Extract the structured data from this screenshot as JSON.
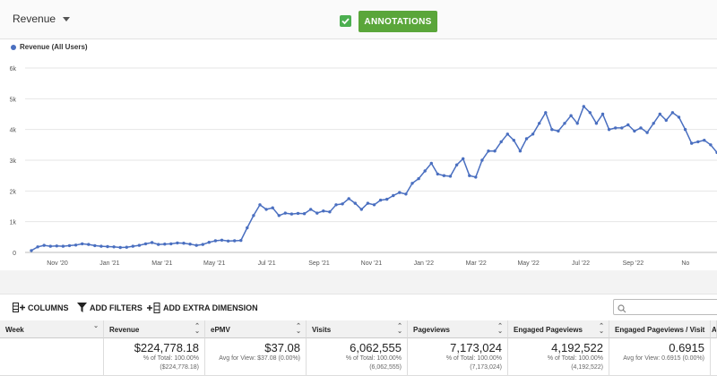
{
  "header": {
    "metric_label": "Revenue",
    "annotations_label": "ANNOTATIONS",
    "annotations_checked": true,
    "accent_color": "#5aa63a"
  },
  "legend": {
    "label": "Revenue (All Users)",
    "color": "#4a6fc0"
  },
  "chart_data": {
    "type": "line",
    "series": [
      {
        "name": "Revenue (All Users)",
        "values": [
          60,
          180,
          230,
          200,
          210,
          200,
          220,
          240,
          280,
          260,
          220,
          200,
          190,
          180,
          160,
          170,
          200,
          230,
          280,
          320,
          260,
          270,
          280,
          310,
          300,
          270,
          230,
          260,
          330,
          380,
          400,
          370,
          380,
          390,
          800,
          1200,
          1550,
          1400,
          1450,
          1200,
          1280,
          1250,
          1270,
          1260,
          1400,
          1280,
          1350,
          1320,
          1550,
          1580,
          1750,
          1600,
          1400,
          1600,
          1550,
          1700,
          1730,
          1850,
          1950,
          1900,
          2250,
          2400,
          2650,
          2900,
          2550,
          2500,
          2480,
          2850,
          3050,
          2500,
          2450,
          3000,
          3300,
          3300,
          3600,
          3850,
          3650,
          3300,
          3700,
          3850,
          4200,
          4550,
          4000,
          3950,
          4200,
          4450,
          4200,
          4750,
          4550,
          4200,
          4500,
          4000,
          4050,
          4050,
          4150,
          3950,
          4050,
          3900,
          4200,
          4500,
          4300,
          4550,
          4400,
          4000,
          3550,
          3600,
          3650,
          3500,
          3250
        ]
      }
    ],
    "ylim": [
      0,
      6000
    ],
    "y_ticks": [
      "0",
      "1k",
      "2k",
      "3k",
      "4k",
      "5k",
      "6k"
    ],
    "x_ticks": [
      "Nov '20",
      "Jan '21",
      "Mar '21",
      "May '21",
      "Jul '21",
      "Sep '21",
      "Nov '21",
      "Jan '22",
      "Mar '22",
      "May '22",
      "Jul '22",
      "Sep '22",
      "No"
    ],
    "grid": true
  },
  "toolbar": {
    "columns_label": "COLUMNS",
    "filters_label": "ADD FILTERS",
    "dimension_label": "ADD EXTRA DIMENSION"
  },
  "table": {
    "headers": [
      "Week",
      "Revenue",
      "ePMV",
      "Visits",
      "Pageviews",
      "Engaged Pageviews",
      "Engaged Pageviews / Visit",
      "A"
    ],
    "totals": [
      {
        "big": "",
        "sub1": "",
        "sub2": ""
      },
      {
        "big": "$224,778.18",
        "sub1": "% of Total: 100.00%",
        "sub2": "($224,778.18)"
      },
      {
        "big": "$37.08",
        "sub1": "Avg for View: $37.08 (0.00%)",
        "sub2": ""
      },
      {
        "big": "6,062,555",
        "sub1": "% of Total: 100.00%",
        "sub2": "(6,062,555)"
      },
      {
        "big": "7,173,024",
        "sub1": "% of Total: 100.00%",
        "sub2": "(7,173,024)"
      },
      {
        "big": "4,192,522",
        "sub1": "% of Total: 100.00%",
        "sub2": "(4,192,522)"
      },
      {
        "big": "0.6915",
        "sub1": "Avg for View: 0.6915 (0.00%)",
        "sub2": ""
      },
      {
        "big": "",
        "sub1": "",
        "sub2": ""
      }
    ]
  }
}
